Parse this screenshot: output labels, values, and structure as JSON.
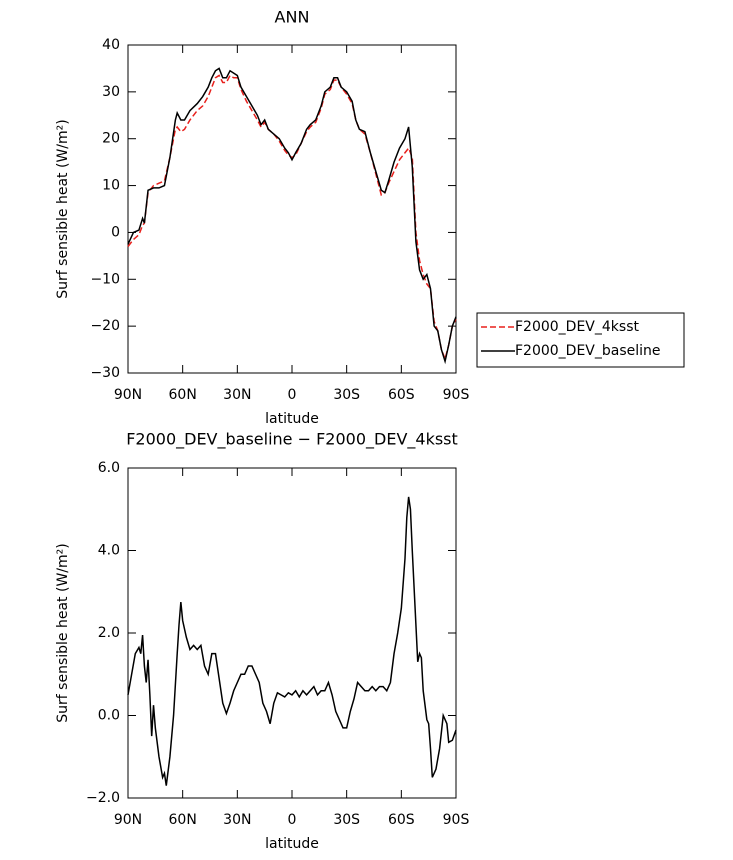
{
  "chart_data": [
    {
      "type": "line",
      "title": "ANN",
      "xlabel": "latitude",
      "ylabel": "Surf sensible heat (W/m²)",
      "x": [
        90,
        87,
        84,
        82,
        81,
        79,
        76,
        73,
        70,
        67,
        64,
        63,
        61,
        59,
        56,
        52,
        49,
        46,
        44,
        42,
        40,
        38,
        36,
        34,
        32,
        30,
        28,
        25,
        22,
        19,
        17,
        15,
        13,
        10,
        7,
        4,
        2,
        0,
        -2,
        -5,
        -8,
        -10,
        -13,
        -16,
        -18,
        -21,
        -23,
        -25,
        -27,
        -30,
        -33,
        -35,
        -37,
        -40,
        -43,
        -46,
        -49,
        -51,
        -53,
        -56,
        -59,
        -62,
        -64,
        -66,
        -68,
        -70,
        -72,
        -74,
        -76,
        -78,
        -80,
        -82,
        -84,
        -86,
        -88,
        -90
      ],
      "series": [
        {
          "name": "F2000_DEV_4ksst",
          "color": "#e8201c",
          "dashed": true,
          "values": [
            -3,
            -1.5,
            -0.5,
            1.5,
            2,
            8.5,
            10,
            10.5,
            11,
            16,
            22,
            22.5,
            21.5,
            22,
            24,
            26,
            27,
            29,
            31,
            33,
            33.5,
            32,
            32,
            33.5,
            33,
            33,
            30.5,
            28,
            26,
            24,
            22.5,
            23.5,
            22,
            21,
            19.5,
            17.5,
            16.5,
            16,
            16.5,
            19,
            21.5,
            22.5,
            23.5,
            26.5,
            29.5,
            30.5,
            32.5,
            32.5,
            31,
            29.5,
            27.5,
            24,
            22,
            21,
            17,
            12.5,
            8,
            8.5,
            10.5,
            13,
            15.5,
            17,
            18,
            16,
            0,
            -6,
            -9,
            -11,
            -12,
            -19,
            -21,
            -25,
            -27,
            -24,
            -20,
            -18.5
          ]
        },
        {
          "name": "F2000_DEV_baseline",
          "color": "#000000",
          "dashed": false,
          "values": [
            -2.5,
            0,
            0.5,
            3,
            2,
            9,
            9.5,
            9.5,
            10,
            16,
            24,
            25.5,
            24,
            24,
            26,
            27.5,
            29,
            31,
            33,
            34.5,
            35,
            33,
            33,
            34.5,
            34,
            33.5,
            31,
            29,
            27,
            25,
            23,
            24,
            22,
            21,
            20,
            18,
            17,
            15.5,
            17,
            19,
            22,
            23,
            24,
            27,
            30,
            31,
            33,
            33,
            31,
            30,
            28,
            24,
            22,
            21.5,
            17,
            13,
            9,
            8.5,
            11,
            15,
            18,
            20,
            22.5,
            14,
            -2,
            -8,
            -10,
            -9,
            -12,
            -20,
            -21,
            -25,
            -27.5,
            -24,
            -20,
            -18
          ]
        }
      ],
      "xlim": [
        90,
        -90
      ],
      "xticks": [
        {
          "value": 90,
          "label": "90N"
        },
        {
          "value": 60,
          "label": "60N"
        },
        {
          "value": 30,
          "label": "30N"
        },
        0,
        {
          "value": -30,
          "label": "30S"
        },
        {
          "value": -60,
          "label": "60S"
        },
        {
          "value": -90,
          "label": "90S"
        }
      ],
      "ylim": [
        -30,
        40
      ],
      "yticks": [
        {
          "value": -30,
          "label": "−30"
        },
        {
          "value": -20,
          "label": "−20"
        },
        {
          "value": -10,
          "label": "−10"
        },
        0,
        10,
        20,
        30,
        40
      ],
      "legend": "right"
    },
    {
      "type": "line",
      "title": "F2000_DEV_baseline − F2000_DEV_4ksst",
      "xlabel": "latitude",
      "ylabel": "Surf sensible heat (W/m²)",
      "x": [
        90,
        88,
        86,
        84,
        83,
        82,
        81,
        80,
        79,
        78,
        77,
        76,
        75,
        73,
        71,
        70,
        69,
        67,
        65,
        63,
        62,
        61,
        60,
        58,
        56,
        54,
        52,
        50,
        48,
        46,
        44,
        42,
        40,
        38,
        36,
        34,
        32,
        30,
        28,
        26,
        24,
        22,
        20,
        18,
        16,
        14,
        12,
        10,
        8,
        6,
        4,
        2,
        0,
        -2,
        -4,
        -6,
        -8,
        -10,
        -12,
        -14,
        -16,
        -18,
        -20,
        -22,
        -24,
        -26,
        -28,
        -30,
        -32,
        -34,
        -36,
        -38,
        -40,
        -42,
        -44,
        -46,
        -48,
        -50,
        -52,
        -54,
        -56,
        -58,
        -60,
        -62,
        -63,
        -64,
        -65,
        -66,
        -68,
        -69,
        -70,
        -71,
        -72,
        -74,
        -75,
        -76,
        -77,
        -79,
        -81,
        -83,
        -85,
        -86,
        -88,
        -90
      ],
      "values": [
        0.5,
        1.0,
        1.5,
        1.65,
        1.5,
        1.95,
        1.2,
        0.8,
        1.35,
        0.5,
        -0.5,
        0.25,
        -0.3,
        -1.0,
        -1.5,
        -1.4,
        -1.7,
        -1.0,
        0.0,
        1.5,
        2.2,
        2.75,
        2.3,
        1.9,
        1.6,
        1.7,
        1.6,
        1.7,
        1.2,
        1.0,
        1.5,
        1.5,
        0.9,
        0.3,
        0.05,
        0.3,
        0.6,
        0.8,
        1.0,
        1.0,
        1.2,
        1.2,
        1.0,
        0.8,
        0.3,
        0.1,
        -0.2,
        0.3,
        0.55,
        0.5,
        0.45,
        0.55,
        0.5,
        0.6,
        0.45,
        0.6,
        0.5,
        0.6,
        0.7,
        0.5,
        0.6,
        0.6,
        0.8,
        0.5,
        0.1,
        -0.1,
        -0.3,
        -0.3,
        0.1,
        0.4,
        0.8,
        0.7,
        0.6,
        0.6,
        0.7,
        0.6,
        0.7,
        0.7,
        0.6,
        0.8,
        1.5,
        2.0,
        2.6,
        3.8,
        4.8,
        5.3,
        5.0,
        4.0,
        2.2,
        1.3,
        1.5,
        1.4,
        0.6,
        -0.1,
        -0.2,
        -0.8,
        -1.5,
        -1.3,
        -0.8,
        0.0,
        -0.2,
        -0.65,
        -0.6,
        -0.35
      ],
      "color": "#000000",
      "xlim": [
        90,
        -90
      ],
      "xticks": [
        {
          "value": 90,
          "label": "90N"
        },
        {
          "value": 60,
          "label": "60N"
        },
        {
          "value": 30,
          "label": "30N"
        },
        0,
        {
          "value": -30,
          "label": "30S"
        },
        {
          "value": -60,
          "label": "60S"
        },
        {
          "value": -90,
          "label": "90S"
        }
      ],
      "ylim": [
        -2,
        6
      ],
      "yticks": [
        {
          "value": -2,
          "label": "−2.0"
        },
        {
          "value": 0,
          "label": "0.0"
        },
        {
          "value": 2,
          "label": "2.0"
        },
        {
          "value": 4,
          "label": "4.0"
        },
        {
          "value": 6,
          "label": "6.0"
        }
      ]
    }
  ]
}
